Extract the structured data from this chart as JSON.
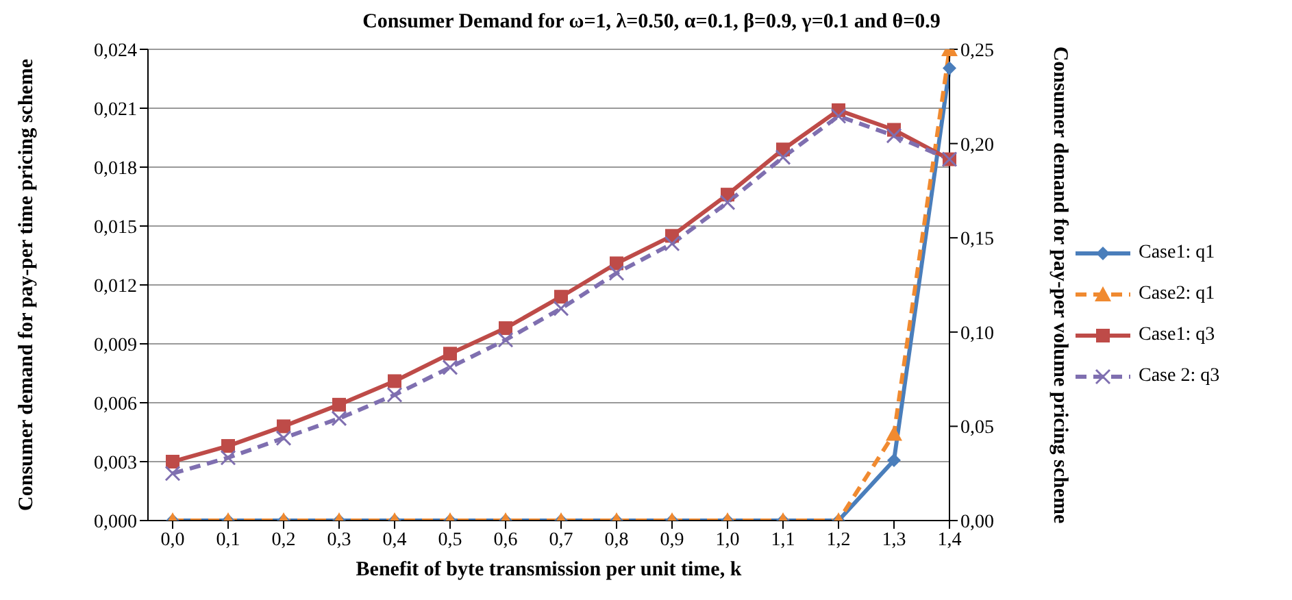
{
  "chart_data": {
    "type": "line",
    "title": "Consumer Demand for ω=1, λ=0.50, α=0.1, β=0.9, γ=0.1 and θ=0.9",
    "xlabel": "Benefit of byte transmission per unit time, k",
    "ylabel": "Consumer demand for pay-per time pricing scheme",
    "y2label": "Consumer demand for pay-per volume pricing scheme",
    "categories": [
      "0,0",
      "0,1",
      "0,2",
      "0,3",
      "0,4",
      "0,5",
      "0,6",
      "0,7",
      "0,8",
      "0,9",
      "1,0",
      "1,1",
      "1,2",
      "1,3",
      "1,4"
    ],
    "series": [
      {
        "name": "Case1: q1",
        "color": "#4a7ebb",
        "axis": "y2",
        "marker": "diamond",
        "line_style": "solid",
        "values": [
          0,
          0,
          0,
          0,
          0,
          0,
          0,
          0,
          0,
          0,
          0,
          0,
          0,
          0.032,
          0.24
        ]
      },
      {
        "name": "Case2: q1",
        "color": "#f08a30",
        "axis": "y2",
        "marker": "triangle",
        "line_style": "dashed",
        "values": [
          0,
          0,
          0,
          0,
          0,
          0,
          0,
          0,
          0,
          0,
          0,
          0,
          0,
          0.046,
          0.25
        ]
      },
      {
        "name": "Case1: q3",
        "color": "#be4b48",
        "marker": "square",
        "line_style": "solid",
        "values": [
          0.003,
          0.0038,
          0.0048,
          0.0059,
          0.0071,
          0.0085,
          0.0098,
          0.0114,
          0.0131,
          0.0145,
          0.0166,
          0.0189,
          0.0209,
          0.0199,
          0.0184
        ]
      },
      {
        "name": "Case 2: q3",
        "color": "#7f6fb0",
        "marker": "cross",
        "line_style": "dashed",
        "values": [
          0.0024,
          0.0032,
          0.0042,
          0.0052,
          0.0064,
          0.0078,
          0.0092,
          0.0108,
          0.0126,
          0.0141,
          0.0162,
          0.0185,
          0.0206,
          0.0196,
          0.0184
        ]
      }
    ],
    "ylim": [
      0,
      0.024
    ],
    "yticks": [
      {
        "value": 0,
        "label": "0,000"
      },
      {
        "value": 0.003,
        "label": "0,003"
      },
      {
        "value": 0.006,
        "label": "0,006"
      },
      {
        "value": 0.009,
        "label": "0,009"
      },
      {
        "value": 0.012,
        "label": "0,012"
      },
      {
        "value": 0.015,
        "label": "0,015"
      },
      {
        "value": 0.018,
        "label": "0,018"
      },
      {
        "value": 0.021,
        "label": "0,021"
      },
      {
        "value": 0.024,
        "label": "0,024"
      }
    ],
    "y2lim": [
      0,
      0.25
    ],
    "y2ticks": [
      {
        "value": 0,
        "label": "0,00"
      },
      {
        "value": 0.05,
        "label": "0,05"
      },
      {
        "value": 0.1,
        "label": "0,10"
      },
      {
        "value": 0.15,
        "label": "0,15"
      },
      {
        "value": 0.2,
        "label": "0,20"
      },
      {
        "value": 0.25,
        "label": "0,25"
      }
    ],
    "grid": "y",
    "legend": "right"
  }
}
